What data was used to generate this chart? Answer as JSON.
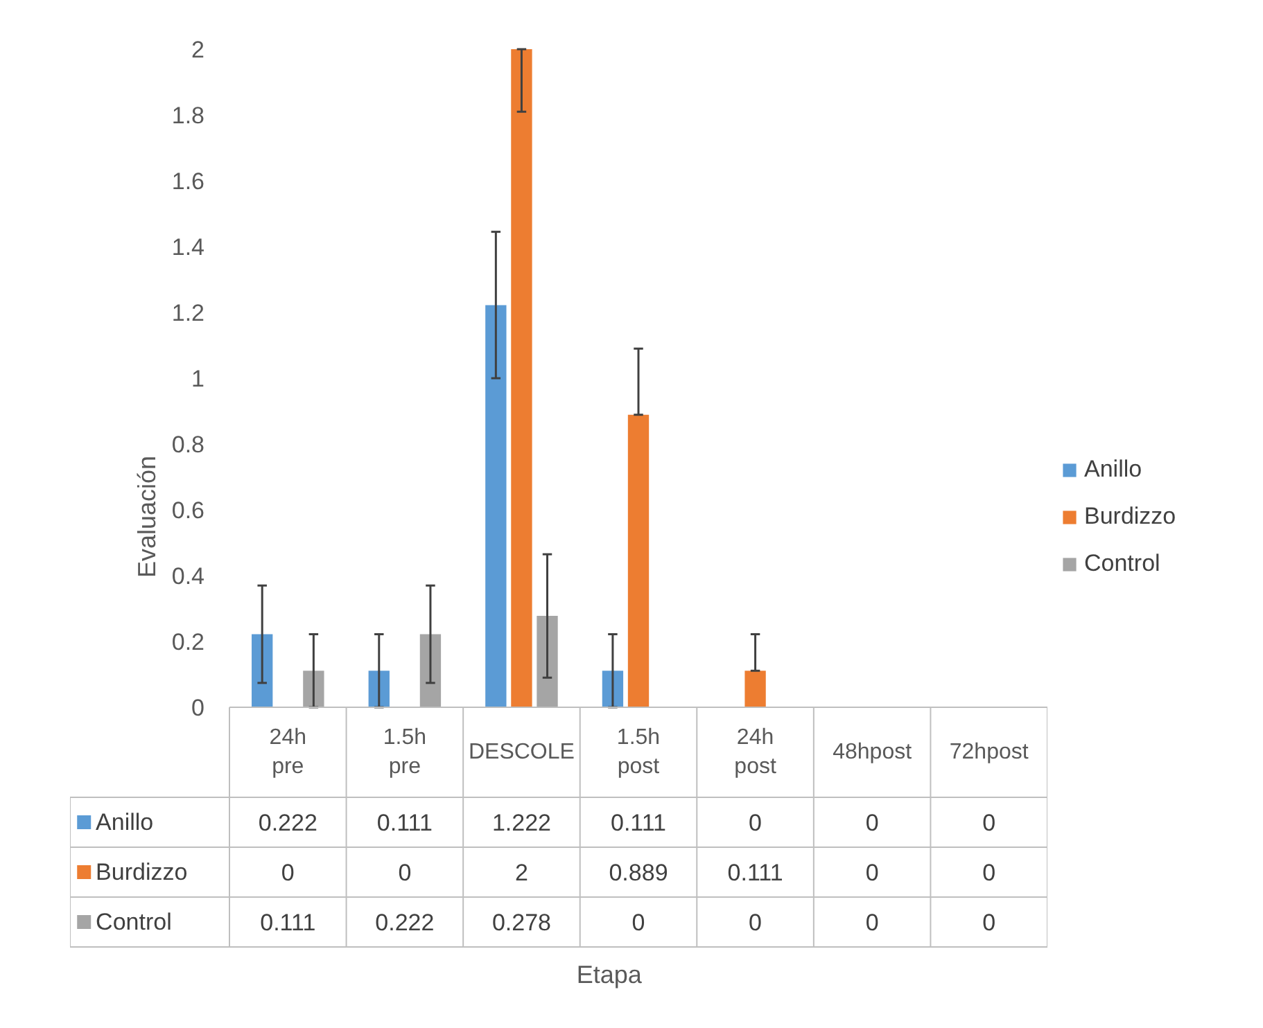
{
  "chart_data": {
    "type": "bar",
    "annotations": [
      "Etapa"
    ],
    "ylabel": "Evaluación",
    "categories": [
      "24h pre",
      "1.5h pre",
      "DESCOLE",
      "1.5h post",
      "24h post",
      "48hpost",
      "72hpost"
    ],
    "ylim": [
      0,
      2
    ],
    "yticks": [
      0,
      0.2,
      0.4,
      0.6,
      0.8,
      1,
      1.2,
      1.4,
      1.6,
      1.8,
      2
    ],
    "grid": false,
    "legend": "right",
    "data_labels": true,
    "series": [
      {
        "name": "Anillo",
        "color": "#5b9bd5",
        "values": [
          0.222,
          0.111,
          1.222,
          0.111,
          0,
          0,
          0
        ],
        "errors": [
          [
            0.074,
            0.37
          ],
          [
            0,
            0.222
          ],
          [
            1.0,
            1.445
          ],
          [
            0,
            0.222
          ],
          null,
          null,
          null
        ]
      },
      {
        "name": "Burdizzo",
        "color": "#ed7d31",
        "values": [
          0,
          0,
          2,
          0.889,
          0.111,
          0,
          0
        ],
        "errors": [
          null,
          null,
          [
            1.81,
            2
          ],
          [
            0.889,
            1.09
          ],
          [
            0.111,
            0.222
          ],
          null,
          null
        ]
      },
      {
        "name": "Control",
        "color": "#a5a5a5",
        "values": [
          0.111,
          0.222,
          0.278,
          0,
          0,
          0,
          0
        ],
        "errors": [
          [
            0,
            0.222
          ],
          [
            0.074,
            0.37
          ],
          [
            0.09,
            0.465
          ],
          null,
          null,
          null,
          null
        ]
      }
    ]
  }
}
